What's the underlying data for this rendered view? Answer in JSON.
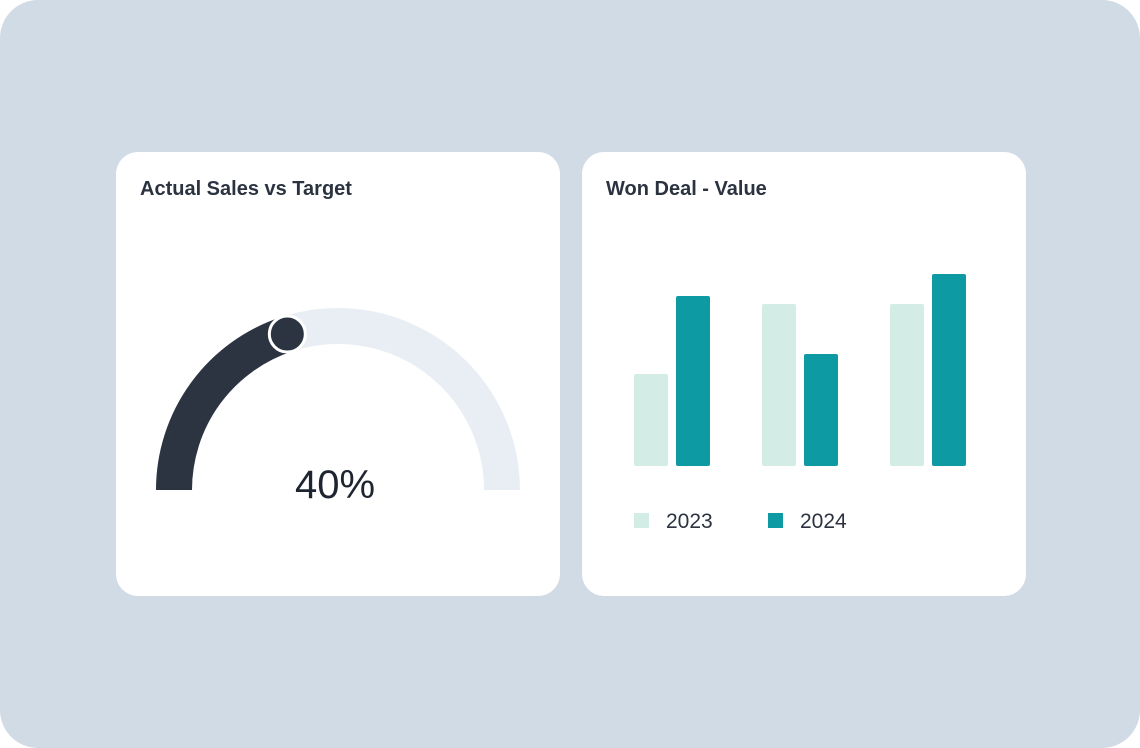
{
  "colors": {
    "background": "#d1dbe5",
    "card": "#ffffff",
    "title_text": "#2b3340",
    "gauge_fill": "#2c3341",
    "gauge_track": "#e9eef5",
    "series_2023": "#d3ede6",
    "series_2024": "#0e9aa2"
  },
  "gauge_card": {
    "title": "Actual Sales vs Target",
    "value_label": "40%"
  },
  "bar_card": {
    "title": "Won Deal - Value"
  },
  "chart_data": [
    {
      "type": "gauge",
      "title": "Actual Sales vs Target",
      "value": 0.4,
      "label": "40%",
      "range": [
        0,
        1
      ]
    },
    {
      "type": "bar",
      "title": "Won Deal - Value",
      "categories": [
        "",
        "",
        ""
      ],
      "series": [
        {
          "name": "2023",
          "values": [
            92,
            162,
            162
          ]
        },
        {
          "name": "2024",
          "values": [
            170,
            112,
            192
          ]
        }
      ],
      "ylim": [
        0,
        200
      ],
      "legend": "bottom-left",
      "grid": false,
      "axes_visible": false
    }
  ]
}
